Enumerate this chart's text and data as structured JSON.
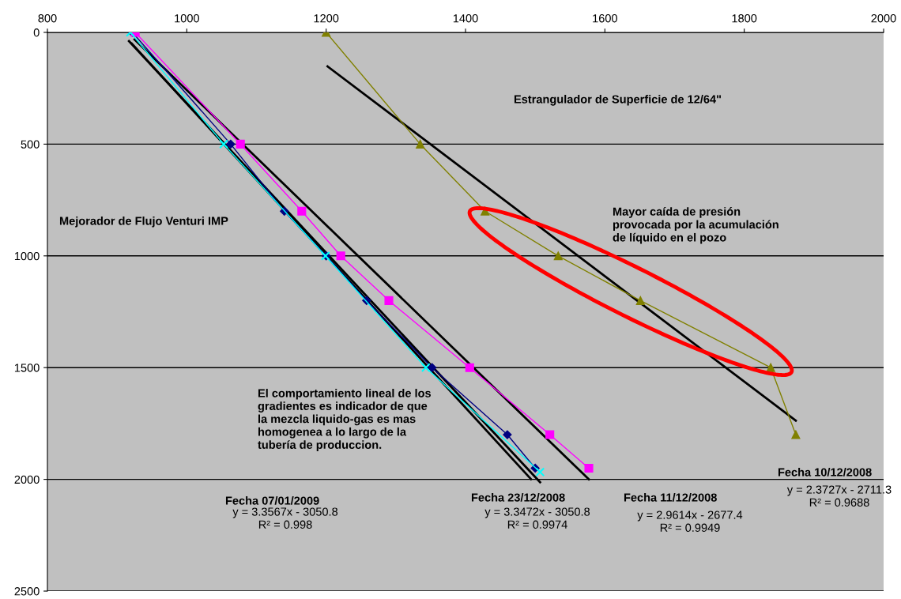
{
  "chart_data": {
    "type": "line",
    "series": [
      {
        "color": "#000080",
        "marker": "diamond",
        "x": [
          922,
          1063,
          1140,
          1200,
          1258,
          1352,
          1460,
          1500
        ],
        "values": [
          0,
          500,
          800,
          1000,
          1200,
          1500,
          1800,
          1950
        ]
      },
      {
        "color": "#ff00ff",
        "marker": "square",
        "x": [
          926,
          1077,
          1165,
          1221,
          1290,
          1406,
          1521,
          1577
        ],
        "values": [
          0,
          500,
          800,
          1000,
          1200,
          1500,
          1800,
          1950
        ]
      },
      {
        "color": "#00ffff",
        "marker": "cross",
        "x": [
          919,
          1053,
          1199,
          1343,
          1507
        ],
        "values": [
          0,
          500,
          1000,
          1500,
          1967
        ]
      },
      {
        "color": "#808000",
        "marker": "triangle",
        "x": [
          1200,
          1335,
          1428,
          1533,
          1651,
          1838,
          1874
        ],
        "values": [
          0,
          500,
          800,
          1000,
          1200,
          1500,
          1800
        ]
      },
      {
        "color": "#000000",
        "marker": "none",
        "x": [
          917,
          1507
        ],
        "values": [
          39,
          2013
        ]
      },
      {
        "color": "#000000",
        "marker": "none",
        "x": [
          921,
          1494
        ],
        "values": [
          50,
          1999
        ]
      },
      {
        "color": "#000000",
        "marker": "none",
        "x": [
          925,
          1577
        ],
        "values": [
          32,
          2000
        ]
      },
      {
        "color": "#000000",
        "marker": "none",
        "x": [
          1202,
          1874
        ],
        "values": [
          152,
          1737
        ]
      }
    ],
    "xlim": [
      800,
      2000
    ],
    "xticks": [
      800,
      1000,
      1200,
      1400,
      1600,
      1800,
      2000
    ],
    "ylim": [
      2500,
      0
    ],
    "yticks": [
      0,
      500,
      1000,
      1500,
      2000,
      2500
    ],
    "grid": "y",
    "line_style": "solid",
    "annotations": [
      "Estrangulador de Superficie de 12/64\"",
      "Mejorador de Flujo Venturi IMP",
      "Mayor caída de presión\nprovocada por la acumulación\nde líquido en el pozo",
      "El comportamiento lineal de los\ngradientes es indicador de que\nla mezcla liquido-gas es mas\nhomogenea a lo largo de la\ntubería de produccion.",
      "Fecha 07/01/2009",
      "y = 3.3567x - 3050.8\nR² = 0.998",
      "Fecha 23/12/2008",
      "y = 3.3472x - 3050.8\nR² = 0.9974",
      "Fecha 11/12/2008",
      "y = 2.9614x - 2677.4\nR² = 0.9949",
      "Fecha 10/12/2008",
      "y = 2.3727x - 2711.3\nR² = 0.9688"
    ]
  }
}
